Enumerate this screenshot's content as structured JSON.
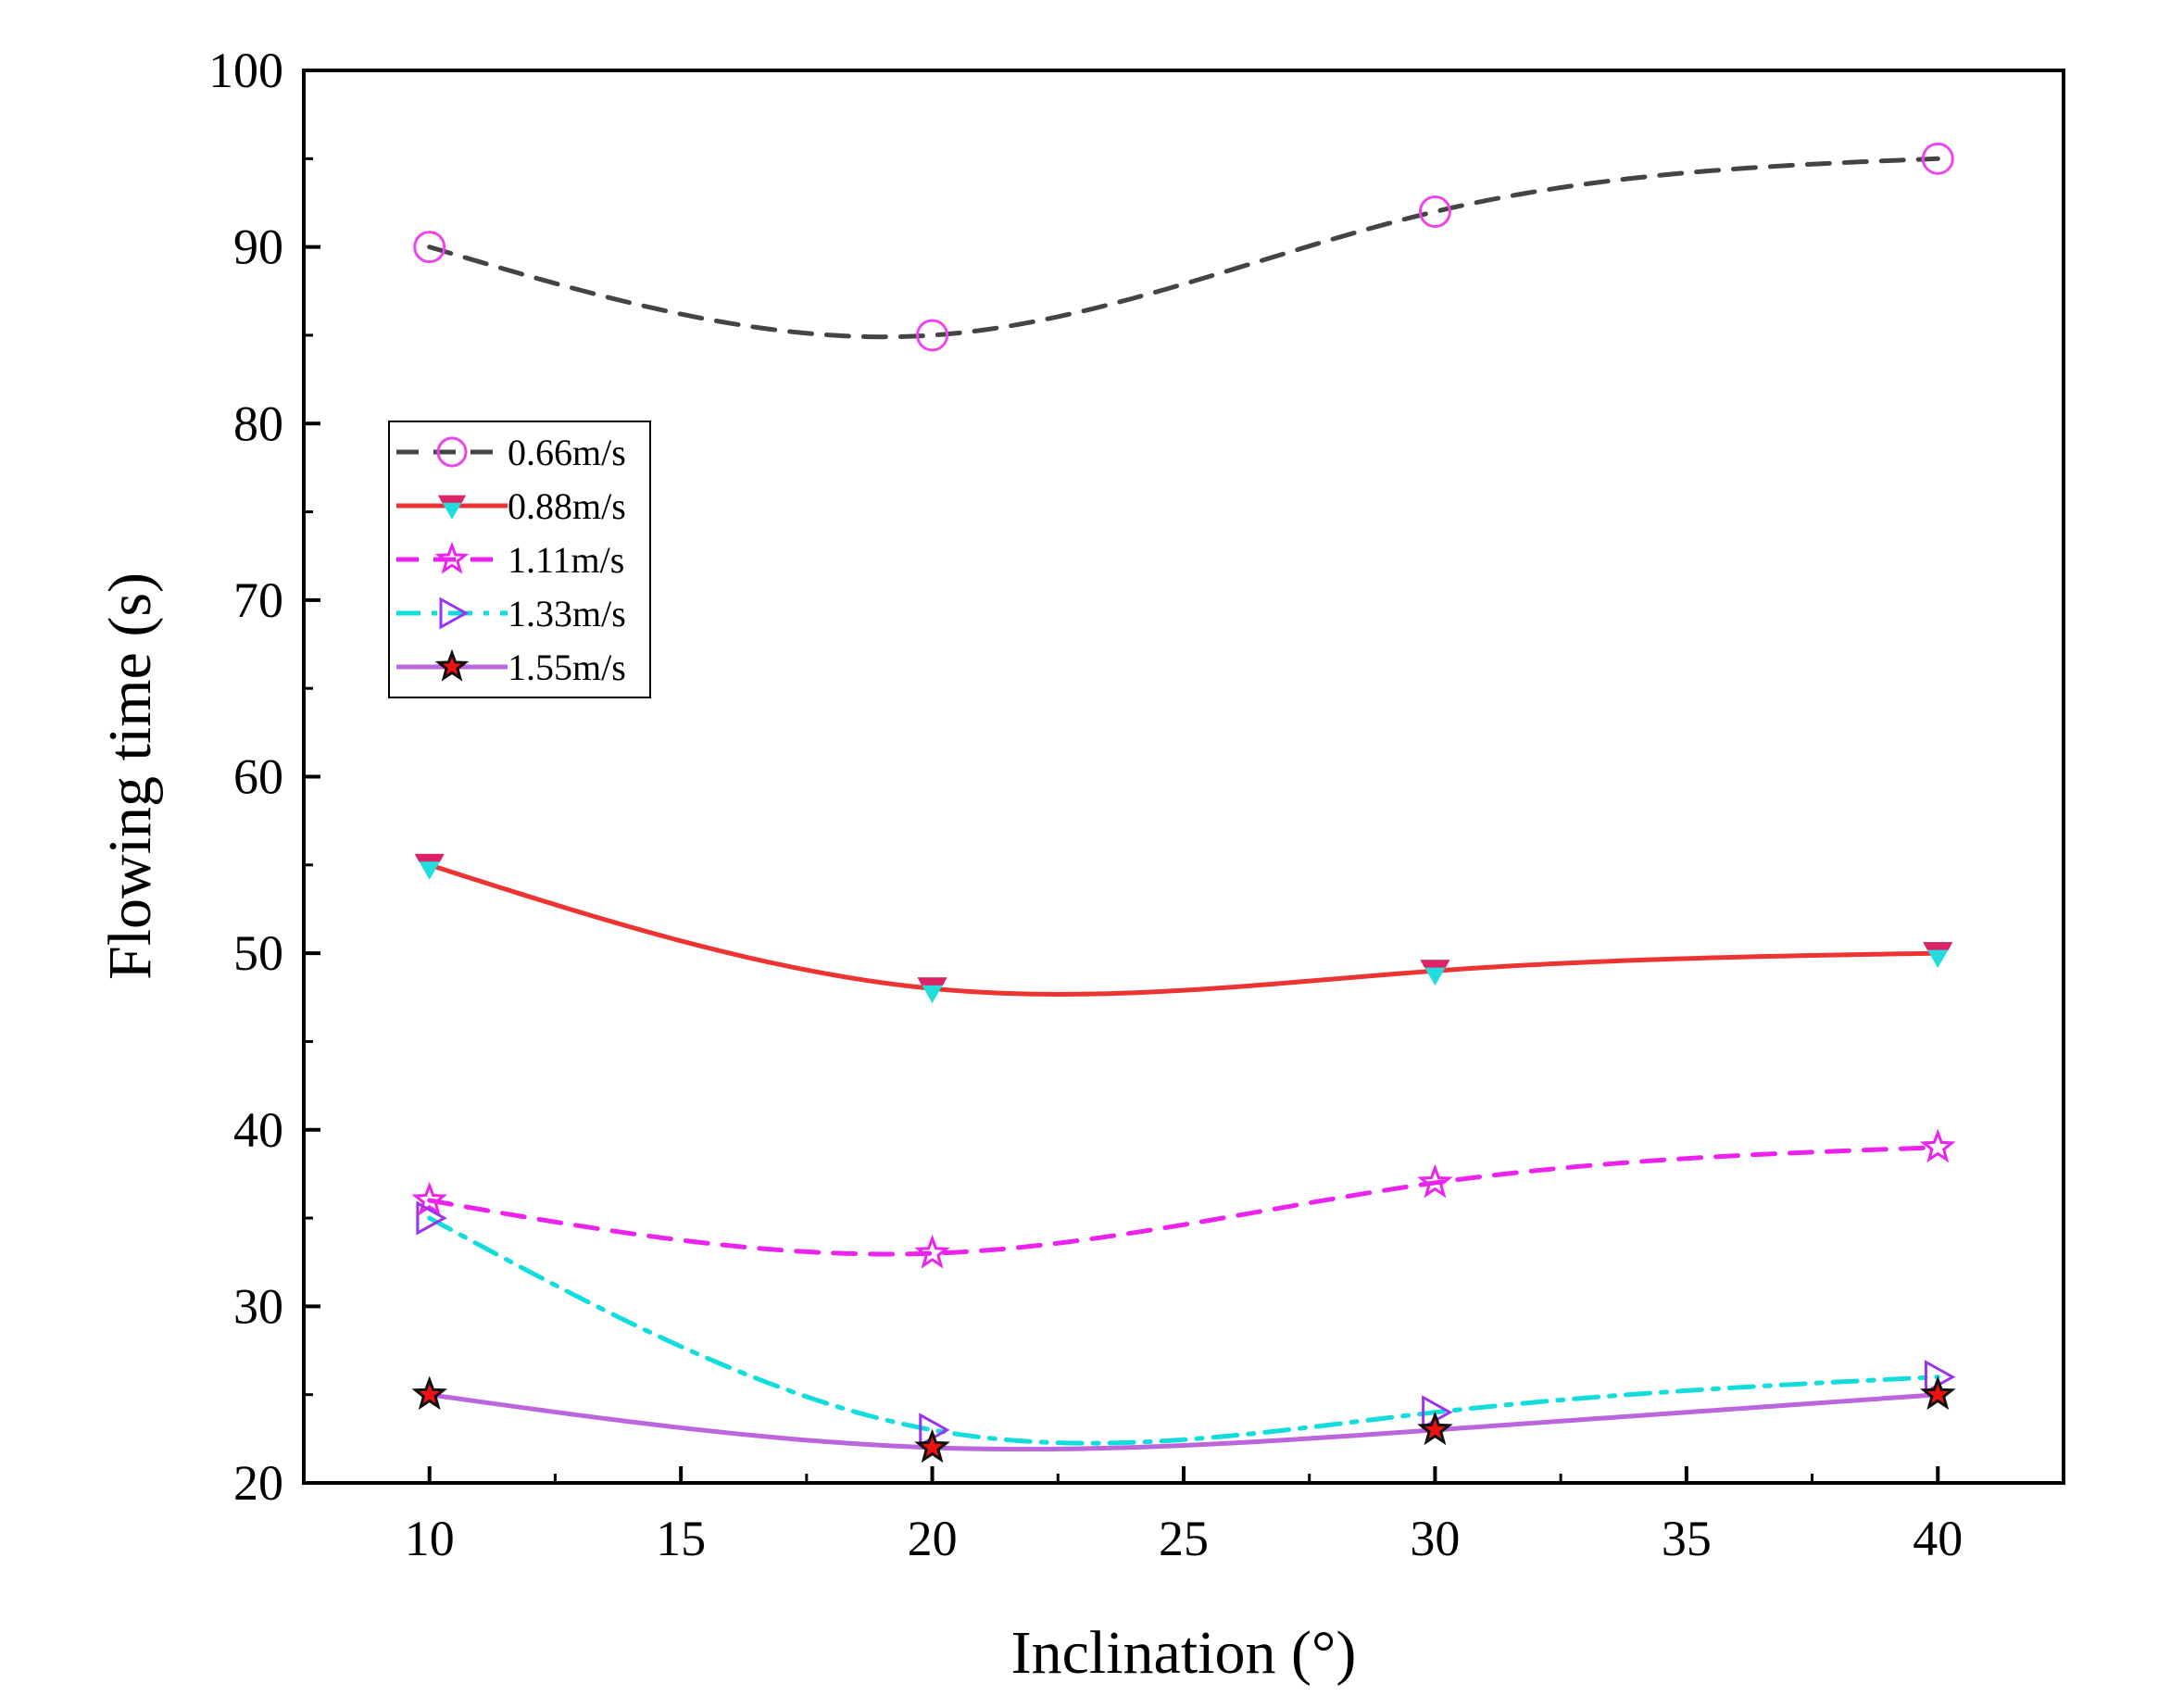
{
  "chart_data": {
    "type": "line",
    "title": "",
    "xlabel": "Inclination (°)",
    "ylabel": "Flowing time (s)",
    "xlim": [
      7.5,
      42.5
    ],
    "ylim": [
      20,
      100
    ],
    "xticks": [
      10,
      15,
      20,
      25,
      30,
      35,
      40
    ],
    "yticks": [
      20,
      30,
      40,
      50,
      60,
      70,
      80,
      90,
      100
    ],
    "x": [
      10,
      20,
      30,
      40
    ],
    "grid": false,
    "legend_position": "upper-left",
    "series": [
      {
        "name": "0.66m/s",
        "values": [
          90,
          85,
          92,
          95
        ],
        "line_color": "#444444",
        "line_style": "dash",
        "marker": "circle",
        "marker_fill": "none",
        "marker_edge": "#ee44ee"
      },
      {
        "name": "0.88m/s",
        "values": [
          55,
          48,
          49,
          50
        ],
        "line_color": "#ee3333",
        "line_style": "solid",
        "marker": "triangle-down",
        "marker_fill": "#22dddd",
        "marker_edge": "#dd2266"
      },
      {
        "name": "1.11m/s",
        "values": [
          36,
          33,
          37,
          39
        ],
        "line_color": "#ee22ee",
        "line_style": "dash",
        "marker": "star",
        "marker_fill": "none",
        "marker_edge": "#ee22ee"
      },
      {
        "name": "1.33m/s",
        "values": [
          35,
          23,
          24,
          26
        ],
        "line_color": "#11dddd",
        "line_style": "dashdot",
        "marker": "triangle-right",
        "marker_fill": "none",
        "marker_edge": "#9933ee"
      },
      {
        "name": "1.55m/s",
        "values": [
          25,
          22,
          23,
          25
        ],
        "line_color": "#bb66dd",
        "line_style": "solid",
        "marker": "star",
        "marker_fill": "#ee1111",
        "marker_edge": "#111111"
      }
    ]
  }
}
